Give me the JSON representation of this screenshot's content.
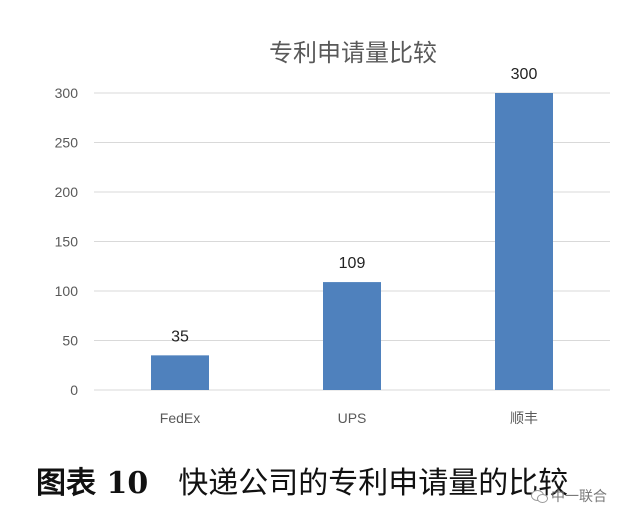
{
  "chart_data": {
    "type": "bar",
    "title": "专利申请量比较",
    "categories": [
      "FedEx",
      "UPS",
      "顺丰"
    ],
    "values": [
      35,
      109,
      300
    ],
    "data_labels": [
      "35",
      "109",
      "300"
    ],
    "yticks": [
      "0",
      "50",
      "100",
      "150",
      "200",
      "250",
      "300"
    ],
    "ylim": [
      0,
      300
    ],
    "xlabel": "",
    "ylabel": "",
    "grid": true,
    "legend": "none",
    "bar_color": "#4f81bd"
  },
  "caption": {
    "figure_number": "图表 10",
    "text": "快递公司的专利申请量的比较"
  },
  "watermark": {
    "icon": "wechat-icon",
    "text": "中一联合"
  }
}
